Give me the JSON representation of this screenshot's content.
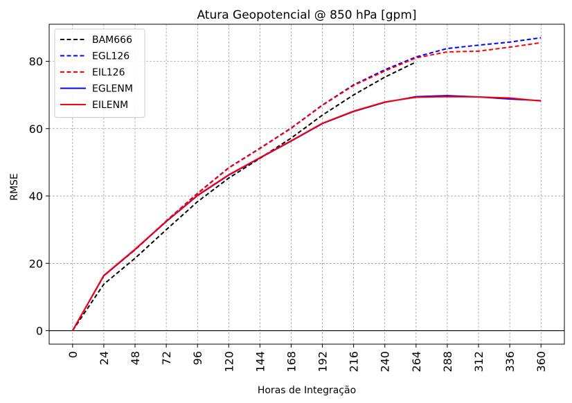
{
  "chart_data": {
    "type": "line",
    "title": "Atura Geopotencial @ 850 hPa [gpm]",
    "xlabel": "Horas de Integração",
    "ylabel": "RMSE",
    "x": [
      0,
      24,
      48,
      72,
      96,
      120,
      144,
      168,
      192,
      216,
      240,
      264,
      288,
      312,
      336,
      360
    ],
    "x_tick_labels": [
      "0",
      "24",
      "48",
      "72",
      "96",
      "120",
      "144",
      "168",
      "192",
      "216",
      "240",
      "264",
      "288",
      "312",
      "336",
      "360"
    ],
    "y_ticks": [
      0,
      20,
      40,
      60,
      80
    ],
    "xlim": [
      -18,
      378
    ],
    "ylim": [
      -4,
      91
    ],
    "grid": true,
    "legend_position": "top-left",
    "series": [
      {
        "name": "BAM666",
        "color": "#000000",
        "style": "dashed",
        "values": [
          0,
          13.8,
          21.5,
          30.0,
          38.3,
          45.3,
          51.2,
          57.2,
          64.0,
          70.0,
          75.3,
          79.8,
          null,
          null,
          null,
          null
        ]
      },
      {
        "name": "EGL126",
        "color": "#0000ff",
        "style": "dashed",
        "values": [
          0,
          16.4,
          24.0,
          32.6,
          40.8,
          48.4,
          54.2,
          60.2,
          67.0,
          73.0,
          77.5,
          81.3,
          83.8,
          84.8,
          85.7,
          87.0
        ]
      },
      {
        "name": "EIL126",
        "color": "#ff0000",
        "style": "dashed",
        "values": [
          0,
          16.3,
          24.0,
          32.5,
          40.7,
          48.3,
          54.1,
          60.1,
          66.9,
          72.8,
          77.1,
          81.0,
          82.8,
          83.0,
          84.2,
          85.5
        ]
      },
      {
        "name": "EGLENM",
        "color": "#0000ff",
        "style": "solid",
        "values": [
          0,
          16.3,
          24.1,
          32.4,
          40.1,
          46.2,
          51.3,
          56.3,
          61.5,
          65.1,
          67.8,
          69.5,
          69.8,
          69.4,
          68.8,
          68.3
        ]
      },
      {
        "name": "EILENM",
        "color": "#ff0000",
        "style": "solid",
        "values": [
          0,
          16.4,
          24.2,
          32.5,
          40.2,
          46.3,
          51.4,
          56.4,
          61.6,
          65.2,
          67.9,
          69.3,
          69.5,
          69.4,
          69.1,
          68.2
        ]
      }
    ]
  }
}
